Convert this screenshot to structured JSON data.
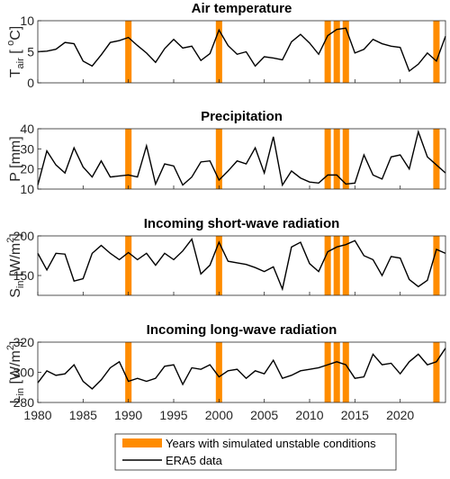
{
  "chart_data": [
    {
      "type": "line",
      "title": "Air temperature",
      "y_label_parts": [
        {
          "text": "T",
          "shift": "base"
        },
        {
          "text": "air",
          "shift": "sub"
        },
        {
          "text": " [ ",
          "shift": "base"
        },
        {
          "text": "o",
          "shift": "sup"
        },
        {
          "text": "C]",
          "shift": "base"
        }
      ],
      "x": [
        1980,
        1981,
        1982,
        1983,
        1984,
        1985,
        1986,
        1987,
        1988,
        1989,
        1990,
        1991,
        1992,
        1993,
        1994,
        1995,
        1996,
        1997,
        1998,
        1999,
        2000,
        2001,
        2002,
        2003,
        2004,
        2005,
        2006,
        2007,
        2008,
        2009,
        2010,
        2011,
        2012,
        2013,
        2014,
        2015,
        2016,
        2017,
        2018,
        2019,
        2020,
        2021,
        2022,
        2023,
        2024,
        2025
      ],
      "series": [
        {
          "name": "ERA5 data",
          "color": "#000000",
          "values": [
            5.0,
            5.1,
            5.4,
            6.5,
            6.3,
            3.5,
            2.7,
            4.5,
            6.5,
            6.8,
            7.3,
            6.0,
            4.8,
            3.3,
            5.5,
            7.0,
            5.6,
            5.9,
            3.6,
            4.7,
            8.5,
            6.0,
            4.6,
            5.0,
            2.7,
            4.2,
            4.0,
            3.7,
            6.6,
            7.8,
            6.4,
            4.6,
            7.6,
            8.6,
            8.8,
            4.8,
            5.4,
            7.0,
            6.3,
            5.9,
            5.7,
            1.9,
            3.0,
            4.8,
            3.5,
            7.5
          ]
        }
      ],
      "xlim": [
        1980,
        2025
      ],
      "xticks": [
        1980,
        1985,
        1990,
        1995,
        2000,
        2005,
        2010,
        2015,
        2020
      ],
      "show_xtick_labels": false,
      "ylim": [
        0,
        10
      ],
      "yticks": [
        0,
        5,
        10
      ]
    },
    {
      "type": "line",
      "title": "Precipitation",
      "y_label_parts": [
        {
          "text": "P [mm]",
          "shift": "base"
        }
      ],
      "x": [
        1980,
        1981,
        1982,
        1983,
        1984,
        1985,
        1986,
        1987,
        1988,
        1989,
        1990,
        1991,
        1992,
        1993,
        1994,
        1995,
        1996,
        1997,
        1998,
        1999,
        2000,
        2001,
        2002,
        2003,
        2004,
        2005,
        2006,
        2007,
        2008,
        2009,
        2010,
        2011,
        2012,
        2013,
        2014,
        2015,
        2016,
        2017,
        2018,
        2019,
        2020,
        2021,
        2022,
        2023,
        2024,
        2025
      ],
      "series": [
        {
          "name": "ERA5 data",
          "color": "#000000",
          "values": [
            12,
            29,
            22,
            18,
            30.5,
            21,
            16,
            24,
            16,
            16.5,
            17,
            16,
            31.5,
            12.5,
            22.5,
            21.5,
            12,
            16,
            23.5,
            24,
            14.5,
            19,
            24,
            22.5,
            30.5,
            18,
            36,
            12,
            19,
            15.5,
            13.5,
            13,
            17,
            17,
            12.5,
            13,
            27,
            17,
            15,
            26,
            27,
            20,
            38.5,
            26,
            22,
            18
          ]
        }
      ],
      "xlim": [
        1980,
        2025
      ],
      "xticks": [
        1980,
        1985,
        1990,
        1995,
        2000,
        2005,
        2010,
        2015,
        2020
      ],
      "show_xtick_labels": false,
      "ylim": [
        10,
        40
      ],
      "yticks": [
        10,
        20,
        30,
        40
      ]
    },
    {
      "type": "line",
      "title": "Incoming short-wave radiation",
      "y_label_parts": [
        {
          "text": "S",
          "shift": "base"
        },
        {
          "text": "in",
          "shift": "sub"
        },
        {
          "text": " [W/m",
          "shift": "base"
        },
        {
          "text": "2",
          "shift": "sup"
        },
        {
          "text": "]",
          "shift": "base"
        }
      ],
      "x": [
        1980,
        1981,
        1982,
        1983,
        1984,
        1985,
        1986,
        1987,
        1988,
        1989,
        1990,
        1991,
        1992,
        1993,
        1994,
        1995,
        1996,
        1997,
        1998,
        1999,
        2000,
        2001,
        2002,
        2003,
        2004,
        2005,
        2006,
        2007,
        2008,
        2009,
        2010,
        2011,
        2012,
        2013,
        2014,
        2015,
        2016,
        2017,
        2018,
        2019,
        2020,
        2021,
        2022,
        2023,
        2024,
        2025
      ],
      "series": [
        {
          "name": "ERA5 data",
          "color": "#000000",
          "values": [
            178,
            157,
            178,
            177,
            143,
            146,
            178,
            188,
            178,
            170,
            179,
            170,
            178,
            163,
            178,
            170,
            181,
            196,
            152,
            163,
            192,
            168,
            166,
            164,
            160,
            155,
            161,
            133,
            186,
            192,
            165,
            155,
            180,
            186,
            189,
            194,
            175,
            170,
            150,
            174,
            172,
            145,
            136,
            144,
            183,
            178
          ]
        }
      ],
      "xlim": [
        1980,
        2025
      ],
      "xticks": [
        1980,
        1985,
        1990,
        1995,
        2000,
        2005,
        2010,
        2015,
        2020
      ],
      "show_xtick_labels": false,
      "ylim": [
        125,
        200
      ],
      "yticks": [
        150,
        200
      ]
    },
    {
      "type": "line",
      "title": "Incoming long-wave radiation",
      "y_label_parts": [
        {
          "text": "L",
          "shift": "base"
        },
        {
          "text": "in",
          "shift": "sub"
        },
        {
          "text": " [W/m",
          "shift": "base"
        },
        {
          "text": "2",
          "shift": "sup"
        },
        {
          "text": "]",
          "shift": "base"
        }
      ],
      "x": [
        1980,
        1981,
        1982,
        1983,
        1984,
        1985,
        1986,
        1987,
        1988,
        1989,
        1990,
        1991,
        1992,
        1993,
        1994,
        1995,
        1996,
        1997,
        1998,
        1999,
        2000,
        2001,
        2002,
        2003,
        2004,
        2005,
        2006,
        2007,
        2008,
        2009,
        2010,
        2011,
        2012,
        2013,
        2014,
        2015,
        2016,
        2017,
        2018,
        2019,
        2020,
        2021,
        2022,
        2023,
        2024,
        2025
      ],
      "series": [
        {
          "name": "ERA5 data",
          "color": "#000000",
          "values": [
            293,
            301,
            298,
            299,
            305,
            294,
            289,
            295,
            303,
            307,
            294,
            296,
            294,
            296,
            304,
            305,
            292,
            303,
            302,
            305,
            297,
            301,
            302,
            296,
            301,
            299,
            308,
            296,
            298,
            301,
            302,
            303,
            305,
            307,
            305,
            296,
            297,
            312,
            305,
            306,
            299,
            307,
            312,
            305,
            307,
            316
          ]
        }
      ],
      "xlim": [
        1980,
        2025
      ],
      "xticks": [
        1980,
        1985,
        1990,
        1995,
        2000,
        2005,
        2010,
        2015,
        2020
      ],
      "show_xtick_labels": true,
      "ylim": [
        280,
        320
      ],
      "yticks": [
        280,
        300,
        320
      ]
    }
  ],
  "highlight": {
    "name": "Years with simulated unstable conditions",
    "color": "#ff8c00",
    "years": [
      1990,
      2000,
      2012,
      2013,
      2014,
      2024
    ],
    "width": 0.7
  }
}
